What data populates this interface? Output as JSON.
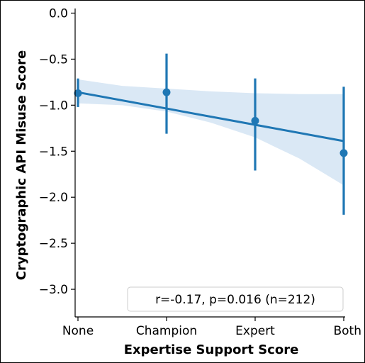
{
  "chart_data": {
    "type": "scatter",
    "title": "",
    "xlabel": "Expertise Support Score",
    "ylabel": "Cryptographic API Misuse Score",
    "categories": [
      "None",
      "Champion",
      "Expert",
      "Both"
    ],
    "x": [
      0,
      1,
      2,
      3
    ],
    "ylim": [
      -3.3,
      0.05
    ],
    "yticks": [
      0.0,
      -0.5,
      -1.0,
      -1.5,
      -2.0,
      -2.5,
      -3.0
    ],
    "ytick_labels": [
      "0.0",
      "−0.5",
      "−1.0",
      "−1.5",
      "−2.0",
      "−2.5",
      "−3.0"
    ],
    "points": [
      {
        "x": 0,
        "y": -0.87,
        "err_low": -1.02,
        "err_high": -0.71
      },
      {
        "x": 1,
        "y": -0.86,
        "err_low": -1.31,
        "err_high": -0.44
      },
      {
        "x": 2,
        "y": -1.17,
        "err_low": -1.71,
        "err_high": -0.71
      },
      {
        "x": 3,
        "y": -1.52,
        "err_low": -2.19,
        "err_high": -0.8
      }
    ],
    "regression": {
      "y_start": -0.86,
      "y_end": -1.39
    },
    "confidence_band": {
      "x": [
        0,
        0.5,
        1,
        1.5,
        2,
        2.5,
        3
      ],
      "upper": [
        -0.72,
        -0.79,
        -0.82,
        -0.85,
        -0.87,
        -0.88,
        -0.88
      ],
      "lower": [
        -0.98,
        -1.0,
        -1.07,
        -1.19,
        -1.35,
        -1.58,
        -1.87
      ]
    },
    "annotation": "r=-0.17, p=0.016 (n=212)",
    "grid": false,
    "colors": {
      "series": "#1f77b4",
      "band": "#c6dcf0"
    }
  }
}
